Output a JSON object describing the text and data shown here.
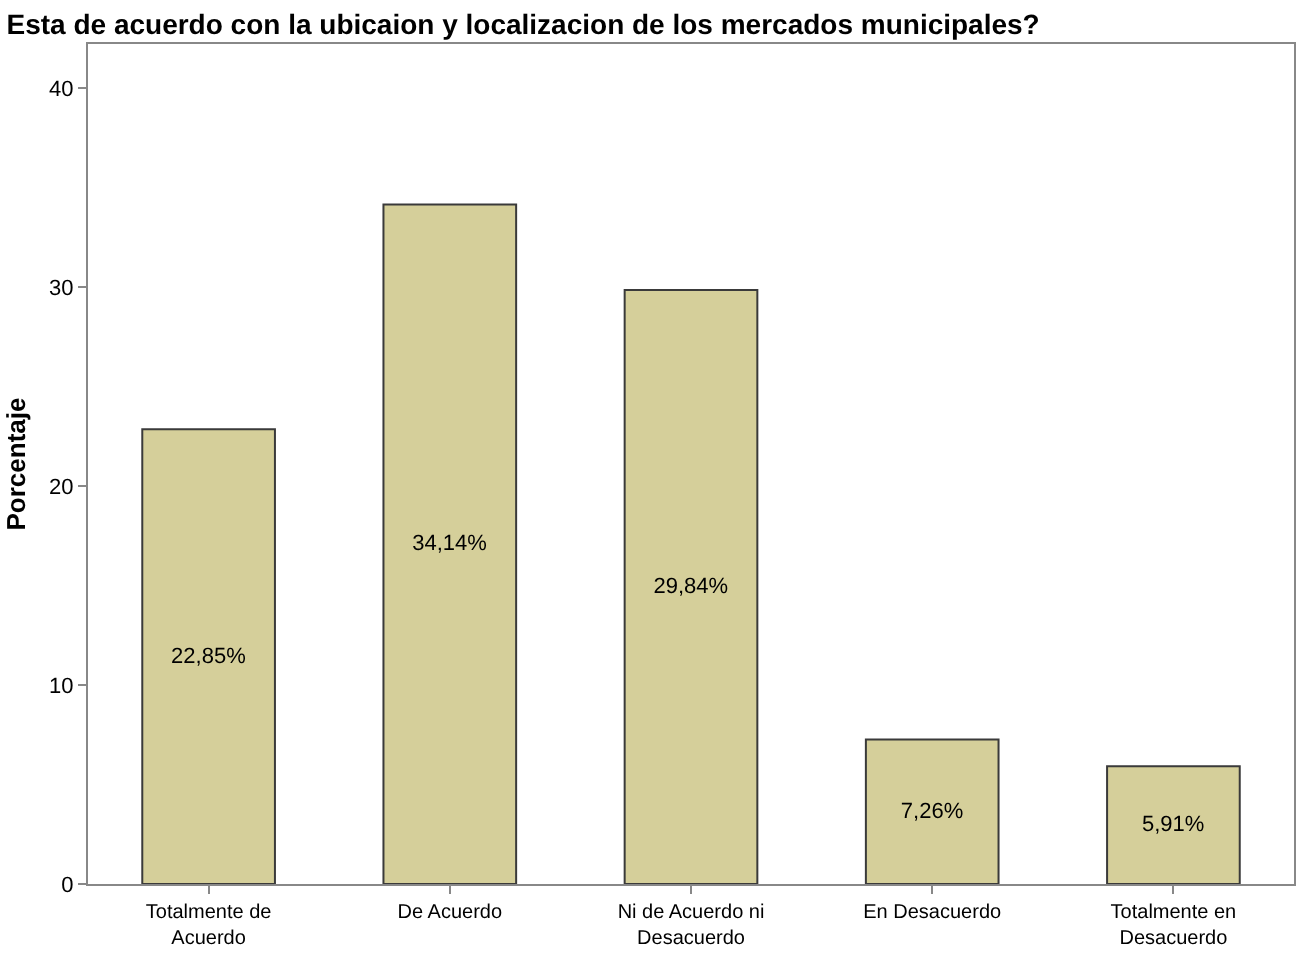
{
  "chart_data": {
    "type": "bar",
    "title": "Esta de acuerdo con la ubicaion y localizacion de los mercados municipales?",
    "ylabel": "Porcentaje",
    "categories": [
      "Totalmente de Acuerdo",
      "De Acuerdo",
      "Ni de Acuerdo ni Desacuerdo",
      "En Desacuerdo",
      "Totalmente en Desacuerdo"
    ],
    "values": [
      22.85,
      34.14,
      29.84,
      7.26,
      5.91
    ],
    "value_labels": [
      "22,85%",
      "34,14%",
      "29,84%",
      "7,26%",
      "5,91%"
    ],
    "color": "#d5cf9a",
    "ylim": [
      0,
      42.2
    ],
    "yticks": [
      0,
      10,
      20,
      30,
      40
    ],
    "grid": false
  }
}
